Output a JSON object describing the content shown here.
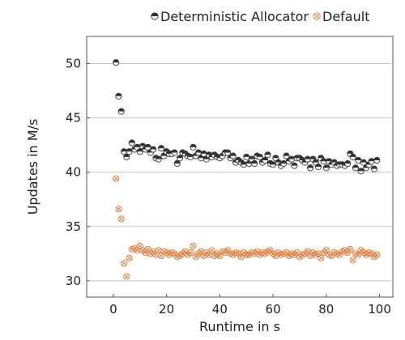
{
  "chart_data": {
    "type": "scatter",
    "title": "",
    "xlabel": "Runtime in s",
    "ylabel": "Updates in M/s",
    "xlim": [
      -10,
      105
    ],
    "ylim": [
      28.5,
      52.5
    ],
    "xticks": [
      "0",
      "20",
      "40",
      "60",
      "80",
      "100"
    ],
    "yticks": [
      "30",
      "35",
      "40",
      "45",
      "50"
    ],
    "grid": "horizontal",
    "legend": "top-right-outside",
    "series": [
      {
        "name": "Deterministic Allocator",
        "marker": "half-filled-circle",
        "color": "#333333",
        "x": [
          1,
          2,
          3,
          4,
          5,
          6,
          7,
          8,
          9,
          10,
          11,
          12,
          13,
          14,
          15,
          16,
          17,
          18,
          19,
          20,
          21,
          22,
          23,
          24,
          25,
          26,
          27,
          28,
          29,
          30,
          31,
          32,
          33,
          34,
          35,
          36,
          37,
          38,
          39,
          40,
          41,
          42,
          43,
          44,
          45,
          46,
          47,
          48,
          49,
          50,
          51,
          52,
          53,
          54,
          55,
          56,
          57,
          58,
          59,
          60,
          61,
          62,
          63,
          64,
          65,
          66,
          67,
          68,
          69,
          70,
          71,
          72,
          73,
          74,
          75,
          76,
          77,
          78,
          79,
          80,
          81,
          82,
          83,
          84,
          85,
          86,
          87,
          88,
          89,
          90,
          91,
          92,
          93,
          94,
          95,
          96,
          97,
          98,
          99
        ],
        "y": [
          50.1,
          47.0,
          45.6,
          41.9,
          41.4,
          41.9,
          42.7,
          42.1,
          42.3,
          41.9,
          42.4,
          42.1,
          42.3,
          41.8,
          42.1,
          41.3,
          41.2,
          42.2,
          41.5,
          41.9,
          41.7,
          41.7,
          41.8,
          40.8,
          41.3,
          41.8,
          41.7,
          41.5,
          41.4,
          42.3,
          41.5,
          41.8,
          41.3,
          41.7,
          41.2,
          41.6,
          41.4,
          41.6,
          41.4,
          41.3,
          41.5,
          41.8,
          41.8,
          41.3,
          41.5,
          40.9,
          41.1,
          40.9,
          40.7,
          41.4,
          40.8,
          41.2,
          40.8,
          41.5,
          41.4,
          40.9,
          41.1,
          41.6,
          40.8,
          40.7,
          41.3,
          40.9,
          40.6,
          40.8,
          41.5,
          41.0,
          41.2,
          40.6,
          41.3,
          41.3,
          41.1,
          40.9,
          41.2,
          40.4,
          41.2,
          40.9,
          40.5,
          41.3,
          41.0,
          40.4,
          41.0,
          40.7,
          40.9,
          40.6,
          40.7,
          40.7,
          40.6,
          40.8,
          41.7,
          41.4,
          40.4,
          41.1,
          40.1,
          40.9,
          40.4,
          40.7,
          41.0,
          40.3,
          41.1
        ]
      },
      {
        "name": "Default",
        "marker": "circle-cross",
        "color": "#e07b39",
        "x": [
          1,
          2,
          3,
          4,
          5,
          6,
          7,
          8,
          9,
          10,
          11,
          12,
          13,
          14,
          15,
          16,
          17,
          18,
          19,
          20,
          21,
          22,
          23,
          24,
          25,
          26,
          27,
          28,
          29,
          30,
          31,
          32,
          33,
          34,
          35,
          36,
          37,
          38,
          39,
          40,
          41,
          42,
          43,
          44,
          45,
          46,
          47,
          48,
          49,
          50,
          51,
          52,
          53,
          54,
          55,
          56,
          57,
          58,
          59,
          60,
          61,
          62,
          63,
          64,
          65,
          66,
          67,
          68,
          69,
          70,
          71,
          72,
          73,
          74,
          75,
          76,
          77,
          78,
          79,
          80,
          81,
          82,
          83,
          84,
          85,
          86,
          87,
          88,
          89,
          90,
          91,
          92,
          93,
          94,
          95,
          96,
          97,
          98,
          99
        ],
        "y": [
          39.4,
          36.6,
          35.7,
          31.6,
          30.4,
          32.1,
          32.9,
          33.0,
          32.8,
          33.2,
          32.8,
          32.6,
          32.9,
          32.5,
          32.7,
          32.4,
          32.8,
          32.3,
          32.7,
          32.6,
          32.4,
          32.6,
          32.5,
          32.2,
          32.3,
          32.5,
          32.7,
          32.4,
          32.6,
          33.2,
          32.2,
          32.5,
          32.7,
          32.3,
          32.6,
          32.4,
          32.8,
          32.3,
          32.5,
          32.3,
          32.7,
          32.6,
          32.8,
          32.5,
          32.4,
          32.6,
          32.5,
          32.2,
          32.6,
          32.4,
          32.4,
          32.6,
          32.5,
          32.7,
          32.4,
          32.6,
          32.5,
          32.7,
          32.8,
          32.5,
          32.3,
          32.6,
          32.4,
          32.5,
          32.6,
          32.3,
          32.5,
          32.4,
          32.6,
          32.2,
          32.4,
          32.5,
          32.7,
          32.3,
          32.6,
          32.4,
          32.5,
          32.1,
          32.6,
          32.8,
          32.4,
          32.3,
          32.6,
          32.5,
          32.4,
          32.7,
          32.8,
          32.6,
          32.9,
          31.9,
          32.5,
          32.4,
          32.8,
          32.6,
          32.4,
          32.6,
          32.5,
          32.2,
          32.4
        ]
      }
    ]
  }
}
